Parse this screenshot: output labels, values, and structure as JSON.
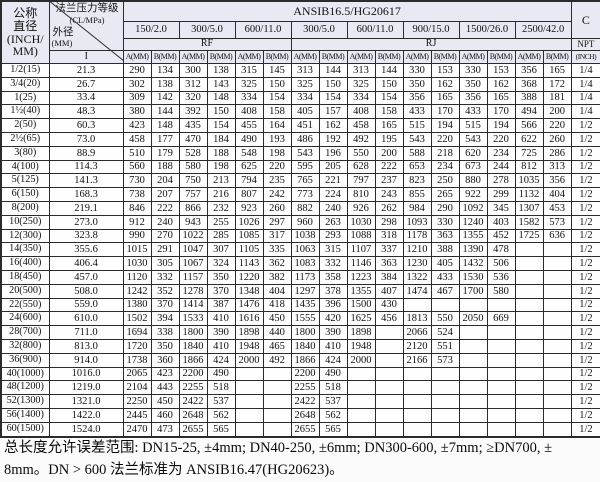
{
  "doc_type": "scanned flange length dimension table",
  "colors": {
    "header_bg": "#e7eaf2",
    "border": "#2b2b2b",
    "text": "#111111",
    "page_bg": "#fbfbfb"
  },
  "header": {
    "nominal_col": {
      "line1": "公称",
      "line2": "直径",
      "line3": "(INCH/",
      "line4": "MM)"
    },
    "diagonal": {
      "top1": "法兰压力等级",
      "top2": "(CL/MPa)",
      "bottom1": "外径",
      "bottom2": "(MM)",
      "sub": "I"
    },
    "standard": "ANSIB16.5/HG20617",
    "classes": [
      "150/2.0",
      "300/5.0",
      "600/11.0",
      "300/5.0",
      "600/11.0",
      "900/15.0",
      "1500/26.0",
      "2500/42.0"
    ],
    "face_rf": "RF",
    "face_rj": "RJ",
    "c_label": "C",
    "npt_label": "NPT",
    "npt_unit": "(INCH)",
    "ab_labels": [
      "A(MM)",
      "B(MM)"
    ]
  },
  "rows": [
    {
      "name": "1/2(15)",
      "od": "21.3",
      "v": [
        "290",
        "134",
        "300",
        "138",
        "315",
        "145",
        "313",
        "144",
        "313",
        "144",
        "330",
        "153",
        "330",
        "153",
        "356",
        "165"
      ],
      "c": "1/4"
    },
    {
      "name": "3/4(20)",
      "od": "26.7",
      "v": [
        "302",
        "138",
        "312",
        "143",
        "325",
        "150",
        "325",
        "150",
        "325",
        "150",
        "350",
        "162",
        "350",
        "162",
        "368",
        "172"
      ],
      "c": "1/4"
    },
    {
      "name": "1(25)",
      "od": "33.4",
      "v": [
        "309",
        "142",
        "320",
        "148",
        "334",
        "154",
        "334",
        "154",
        "334",
        "154",
        "356",
        "165",
        "356",
        "165",
        "388",
        "181"
      ],
      "c": "1/4"
    },
    {
      "name": "1½(40)",
      "od": "48.3",
      "v": [
        "380",
        "144",
        "392",
        "150",
        "408",
        "158",
        "405",
        "157",
        "408",
        "158",
        "433",
        "170",
        "433",
        "170",
        "494",
        "200"
      ],
      "c": "1/4"
    },
    {
      "name": "2(50)",
      "od": "60.3",
      "v": [
        "423",
        "148",
        "435",
        "154",
        "455",
        "164",
        "451",
        "162",
        "458",
        "165",
        "515",
        "194",
        "515",
        "194",
        "566",
        "220"
      ],
      "c": "1/2"
    },
    {
      "name": "2½(65)",
      "od": "73.0",
      "v": [
        "458",
        "177",
        "470",
        "184",
        "490",
        "193",
        "486",
        "192",
        "492",
        "195",
        "543",
        "220",
        "543",
        "220",
        "622",
        "260"
      ],
      "c": "1/2"
    },
    {
      "name": "3(80)",
      "od": "88.9",
      "v": [
        "510",
        "179",
        "528",
        "188",
        "548",
        "198",
        "543",
        "196",
        "550",
        "200",
        "588",
        "218",
        "620",
        "234",
        "725",
        "286"
      ],
      "c": "1/2"
    },
    {
      "name": "4(100)",
      "od": "114.3",
      "v": [
        "560",
        "188",
        "580",
        "198",
        "625",
        "220",
        "595",
        "205",
        "628",
        "222",
        "653",
        "234",
        "673",
        "244",
        "812",
        "313"
      ],
      "c": "1/2"
    },
    {
      "name": "5(125)",
      "od": "141.3",
      "v": [
        "730",
        "204",
        "750",
        "213",
        "794",
        "235",
        "765",
        "221",
        "797",
        "237",
        "823",
        "250",
        "880",
        "278",
        "1035",
        "356"
      ],
      "c": "1/2"
    },
    {
      "name": "6(150)",
      "od": "168.3",
      "v": [
        "738",
        "207",
        "757",
        "216",
        "807",
        "242",
        "773",
        "224",
        "810",
        "243",
        "855",
        "265",
        "922",
        "299",
        "1132",
        "404"
      ],
      "c": "1/2"
    },
    {
      "name": "8(200)",
      "od": "219.1",
      "v": [
        "846",
        "222",
        "866",
        "232",
        "923",
        "260",
        "882",
        "240",
        "926",
        "262",
        "984",
        "290",
        "1092",
        "345",
        "1307",
        "453"
      ],
      "c": "1/2"
    },
    {
      "name": "10(250)",
      "od": "273.0",
      "v": [
        "912",
        "240",
        "943",
        "255",
        "1026",
        "297",
        "960",
        "263",
        "1030",
        "298",
        "1093",
        "330",
        "1240",
        "403",
        "1582",
        "573"
      ],
      "c": "1/2"
    },
    {
      "name": "12(300)",
      "od": "323.8",
      "v": [
        "990",
        "270",
        "1022",
        "285",
        "1085",
        "317",
        "1038",
        "293",
        "1088",
        "318",
        "1178",
        "363",
        "1355",
        "452",
        "1725",
        "636"
      ],
      "c": "1/2"
    },
    {
      "name": "14(350)",
      "od": "355.6",
      "v": [
        "1015",
        "291",
        "1047",
        "307",
        "1105",
        "335",
        "1063",
        "315",
        "1107",
        "337",
        "1210",
        "388",
        "1390",
        "478",
        "",
        ""
      ],
      "c": "1/2"
    },
    {
      "name": "16(400)",
      "od": "406.4",
      "v": [
        "1030",
        "305",
        "1067",
        "324",
        "1143",
        "362",
        "1083",
        "332",
        "1146",
        "363",
        "1230",
        "405",
        "1432",
        "506",
        "",
        ""
      ],
      "c": "1/2"
    },
    {
      "name": "18(450)",
      "od": "457.0",
      "v": [
        "1120",
        "332",
        "1157",
        "350",
        "1220",
        "382",
        "1173",
        "358",
        "1223",
        "384",
        "1322",
        "433",
        "1530",
        "536",
        "",
        ""
      ],
      "c": "1/2"
    },
    {
      "name": "20(500)",
      "od": "508.0",
      "v": [
        "1242",
        "352",
        "1278",
        "370",
        "1348",
        "404",
        "1297",
        "378",
        "1355",
        "407",
        "1474",
        "467",
        "1700",
        "580",
        "",
        ""
      ],
      "c": "1/2"
    },
    {
      "name": "22(550)",
      "od": "559.0",
      "v": [
        "1380",
        "370",
        "1414",
        "387",
        "1476",
        "418",
        "1435",
        "396",
        "1500",
        "430",
        "",
        "",
        "",
        "",
        "",
        ""
      ],
      "c": "1/2"
    },
    {
      "name": "24(600)",
      "od": "610.0",
      "v": [
        "1502",
        "394",
        "1533",
        "410",
        "1616",
        "450",
        "1555",
        "420",
        "1625",
        "456",
        "1813",
        "550",
        "2050",
        "669",
        "",
        ""
      ],
      "c": "1/2"
    },
    {
      "name": "28(700)",
      "od": "711.0",
      "v": [
        "1694",
        "338",
        "1800",
        "390",
        "1898",
        "440",
        "1800",
        "390",
        "1898",
        "",
        "2066",
        "524",
        "",
        "",
        "",
        ""
      ],
      "c": "1/2"
    },
    {
      "name": "32(800)",
      "od": "813.0",
      "v": [
        "1720",
        "350",
        "1840",
        "410",
        "1948",
        "465",
        "1840",
        "410",
        "1948",
        "",
        "2120",
        "551",
        "",
        "",
        "",
        ""
      ],
      "c": "1/2"
    },
    {
      "name": "36(900)",
      "od": "914.0",
      "v": [
        "1738",
        "360",
        "1866",
        "424",
        "2000",
        "492",
        "1866",
        "424",
        "2000",
        "",
        "2166",
        "573",
        "",
        "",
        "",
        ""
      ],
      "c": "1/2"
    },
    {
      "name": "40(1000)",
      "od": "1016.0",
      "v": [
        "2065",
        "423",
        "2200",
        "490",
        "",
        "",
        "2200",
        "490",
        "",
        "",
        "",
        "",
        "",
        "",
        "",
        ""
      ],
      "c": "1/2"
    },
    {
      "name": "48(1200)",
      "od": "1219.0",
      "v": [
        "2104",
        "443",
        "2255",
        "518",
        "",
        "",
        "2255",
        "518",
        "",
        "",
        "",
        "",
        "",
        "",
        "",
        ""
      ],
      "c": "1/2"
    },
    {
      "name": "52(1300)",
      "od": "1321.0",
      "v": [
        "2250",
        "450",
        "2422",
        "537",
        "",
        "",
        "2422",
        "537",
        "",
        "",
        "",
        "",
        "",
        "",
        "",
        ""
      ],
      "c": "1/2"
    },
    {
      "name": "56(1400)",
      "od": "1422.0",
      "v": [
        "2445",
        "460",
        "2648",
        "562",
        "",
        "",
        "2648",
        "562",
        "",
        "",
        "",
        "",
        "",
        "",
        "",
        ""
      ],
      "c": "1/2"
    },
    {
      "name": "60(1500)",
      "od": "1524.0",
      "v": [
        "2470",
        "473",
        "2655",
        "565",
        "",
        "",
        "2655",
        "565",
        "",
        "",
        "",
        "",
        "",
        "",
        "",
        ""
      ],
      "c": "1/2"
    }
  ],
  "notes": [
    "总长度允许误差范围: DN15-25, ±4mm; DN40-250, ±6mm; DN300-600, ±7mm; ≥DN700, ±",
    "8mm。DN > 600 法兰标准为 ANSIB16.47(HG20623)。"
  ]
}
